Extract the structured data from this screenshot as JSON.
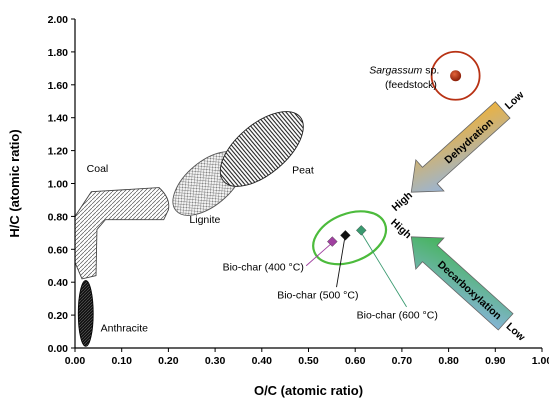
{
  "chart_data": {
    "type": "scatter",
    "title": "",
    "xlabel": "O/C (atomic ratio)",
    "ylabel": "H/C (atomic ratio)",
    "xlim": [
      0.0,
      1.0
    ],
    "ylim": [
      0.0,
      2.0
    ],
    "x_ticks": [
      "0.00",
      "0.10",
      "0.20",
      "0.30",
      "0.40",
      "0.50",
      "0.60",
      "0.70",
      "0.80",
      "0.90",
      "1.00"
    ],
    "y_ticks": [
      "0.00",
      "0.20",
      "0.40",
      "0.60",
      "0.80",
      "1.00",
      "1.20",
      "1.40",
      "1.60",
      "1.80",
      "2.00"
    ],
    "grid": false,
    "regions": [
      {
        "name": "Anthracite",
        "label": "Anthracite"
      },
      {
        "name": "Coal",
        "label": "Coal"
      },
      {
        "name": "Lignite",
        "label": "Lignite"
      },
      {
        "name": "Peat",
        "label": "Peat"
      }
    ],
    "series": [
      {
        "name": "Sargassum sp. (feedstock)",
        "label_italic": "Sargassum",
        "label_rest": " sp.",
        "label_line2": "(feedstock)",
        "x": [
          0.815
        ],
        "y": [
          1.655
        ],
        "color": "#b83214"
      },
      {
        "name": "Bio-char (400 °C)",
        "label": "Bio-char (400 °C)",
        "x": [
          0.551
        ],
        "y": [
          0.647
        ],
        "color": "#a040a0"
      },
      {
        "name": "Bio-char (500 °C)",
        "label": "Bio-char (500 °C)",
        "x": [
          0.579
        ],
        "y": [
          0.685
        ],
        "color": "#111111"
      },
      {
        "name": "Bio-char (600 °C)",
        "label": "Bio-char (600 °C)",
        "x": [
          0.613
        ],
        "y": [
          0.715
        ],
        "color": "#3a9a70"
      }
    ],
    "annotations": {
      "dehydration": {
        "label": "Dehydration",
        "low": "Low",
        "high": "High"
      },
      "decarboxylation": {
        "label": "Decarboxylation",
        "low": "Low",
        "high": "High"
      }
    },
    "colors": {
      "feedstock_ring": "#b83214",
      "biochar_ring": "#4cbb3c",
      "anthracite": "#2b2b2b",
      "coal": "#c8c8c8",
      "lignite": "#dcdcdc",
      "peat": "#555555"
    }
  }
}
